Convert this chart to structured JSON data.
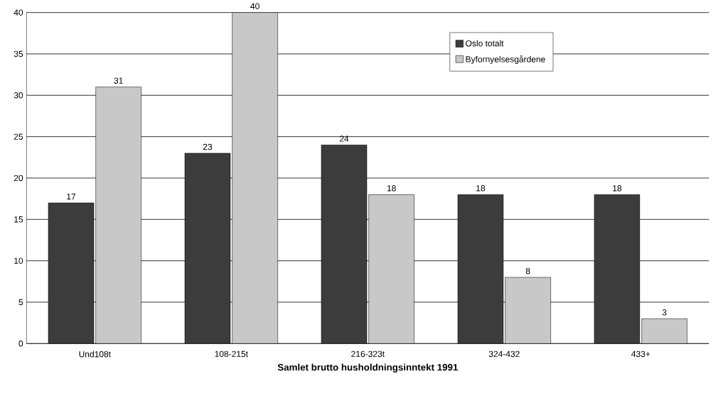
{
  "chart_data": {
    "type": "bar",
    "xlabel": "Samlet brutto husholdningsinntekt 1991",
    "categories": [
      "Und108t",
      "108-215t",
      "216-323t",
      "324-432",
      "433+"
    ],
    "series": [
      {
        "name": "Oslo totalt",
        "color": "#3c3c3c",
        "values": [
          17,
          23,
          24,
          18,
          18
        ]
      },
      {
        "name": "Byfornyelsesgårdene",
        "color": "#c8c8c8",
        "values": [
          31,
          40,
          18,
          8,
          3
        ]
      }
    ],
    "ylim": [
      0,
      40
    ],
    "yticks": [
      0,
      5,
      10,
      15,
      20,
      25,
      30,
      35,
      40
    ],
    "grid": "y",
    "legend": "top right",
    "data_labels": true
  }
}
